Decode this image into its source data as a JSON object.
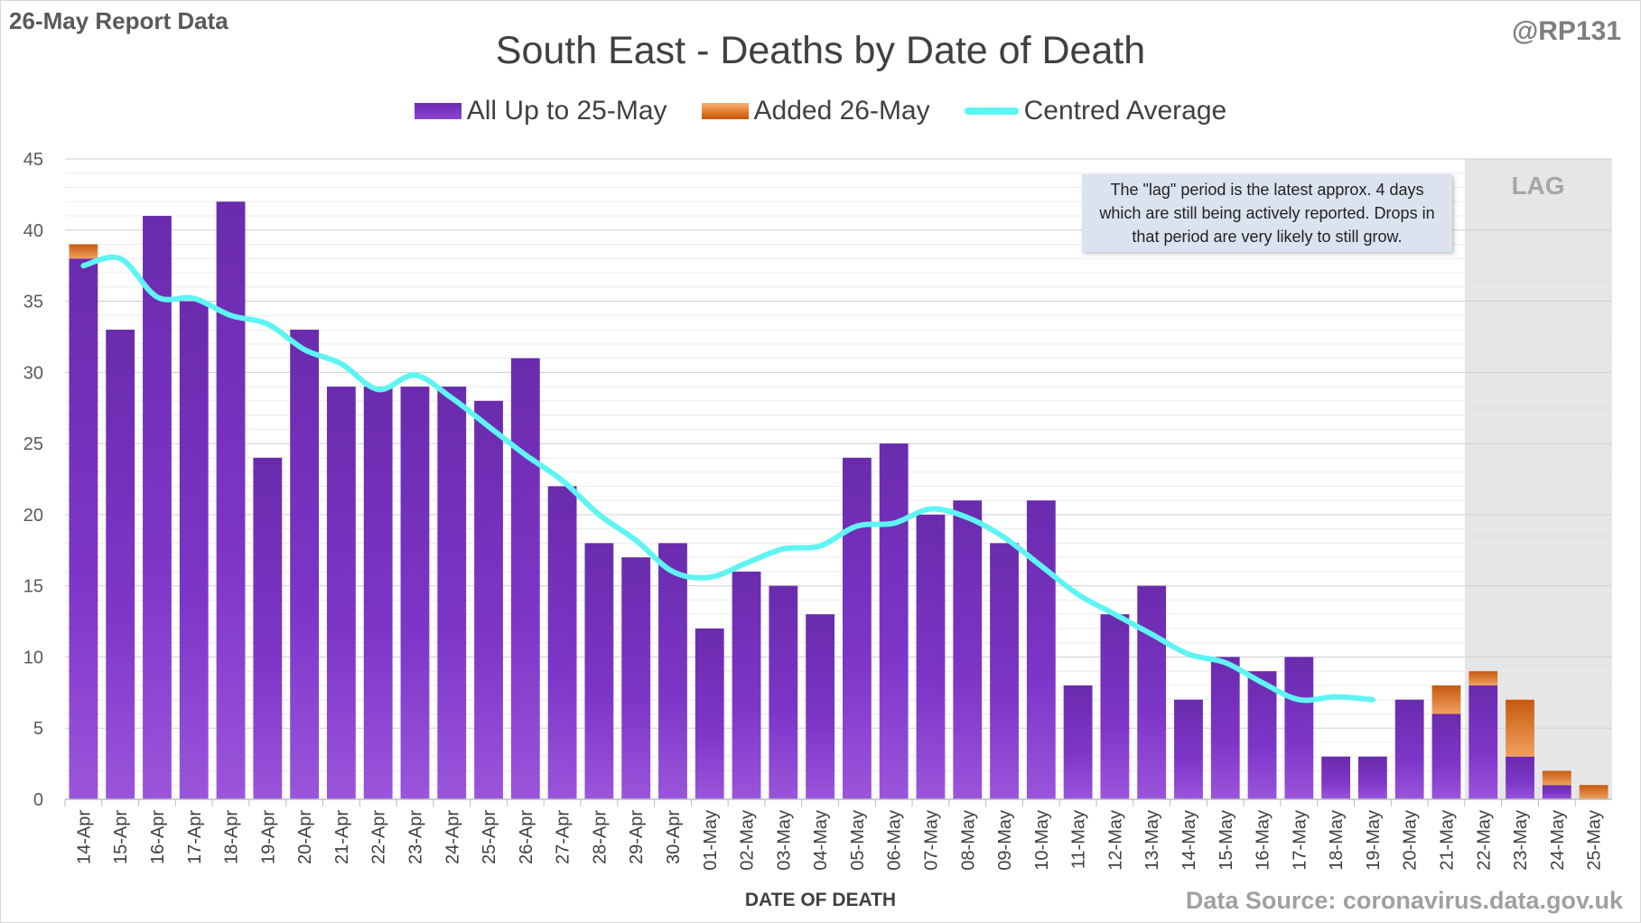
{
  "header": {
    "report_date": "26-May Report Data",
    "handle": "@RP131",
    "source": "Data Source: coronavirus.data.gov.uk"
  },
  "colors": {
    "base_bar": "#7b35c4",
    "added_bar": "#e07b2a",
    "average_line": "#5ff4f4",
    "lag_shade": "#e6e6e6",
    "grid": "#d9d9d9"
  },
  "chart_data": {
    "type": "bar",
    "title": "South East - Deaths by Date of Death",
    "xlabel": "DATE OF DEATH",
    "ylabel": "",
    "ylim": [
      0,
      45
    ],
    "yticks": [
      0,
      5,
      10,
      15,
      20,
      25,
      30,
      35,
      40,
      45
    ],
    "grid": true,
    "legend_position": "top-center",
    "stacked": true,
    "categories": [
      "14-Apr",
      "15-Apr",
      "16-Apr",
      "17-Apr",
      "18-Apr",
      "19-Apr",
      "20-Apr",
      "21-Apr",
      "22-Apr",
      "23-Apr",
      "24-Apr",
      "25-Apr",
      "26-Apr",
      "27-Apr",
      "28-Apr",
      "29-Apr",
      "30-Apr",
      "01-May",
      "02-May",
      "03-May",
      "04-May",
      "05-May",
      "06-May",
      "07-May",
      "08-May",
      "09-May",
      "10-May",
      "11-May",
      "12-May",
      "13-May",
      "14-May",
      "15-May",
      "16-May",
      "17-May",
      "18-May",
      "19-May",
      "20-May",
      "21-May",
      "22-May",
      "23-May",
      "24-May",
      "25-May"
    ],
    "series": [
      {
        "name": "All Up to 25-May",
        "kind": "bar",
        "color": "#7b35c4",
        "values": [
          38,
          33,
          41,
          35,
          42,
          24,
          33,
          29,
          29,
          29,
          29,
          28,
          31,
          22,
          18,
          17,
          18,
          12,
          16,
          15,
          13,
          24,
          25,
          20,
          21,
          18,
          21,
          8,
          13,
          15,
          7,
          10,
          9,
          10,
          3,
          3,
          7,
          6,
          8,
          3,
          1,
          0
        ]
      },
      {
        "name": "Added 26-May",
        "kind": "bar",
        "color": "#e07b2a",
        "values": [
          1,
          0,
          0,
          0,
          0,
          0,
          0,
          0,
          0,
          0,
          0,
          0,
          0,
          0,
          0,
          0,
          0,
          0,
          0,
          0,
          0,
          0,
          0,
          0,
          0,
          0,
          0,
          0,
          0,
          0,
          0,
          0,
          0,
          0,
          0,
          0,
          0,
          2,
          1,
          4,
          1,
          1
        ]
      },
      {
        "name": "Centred Average",
        "kind": "line",
        "color": "#5ff4f4",
        "values": [
          37.5,
          38.0,
          35.3,
          35.2,
          34.0,
          33.4,
          31.6,
          30.6,
          28.8,
          29.8,
          28.2,
          26.2,
          24.2,
          22.4,
          20.0,
          18.2,
          16.0,
          15.6,
          16.6,
          17.6,
          17.8,
          19.2,
          19.4,
          20.4,
          19.8,
          18.4,
          16.4,
          14.4,
          13.0,
          11.6,
          10.2,
          9.6,
          8.2,
          7.0,
          7.2,
          7.0,
          null,
          null,
          null,
          null,
          null,
          null
        ]
      }
    ],
    "lag_region": {
      "from": "22-May",
      "to": "25-May",
      "label": "LAG"
    },
    "annotation": "The \"lag\" period is the latest approx. 4 days which are still being actively reported. Drops in that period are very likely to still grow."
  }
}
